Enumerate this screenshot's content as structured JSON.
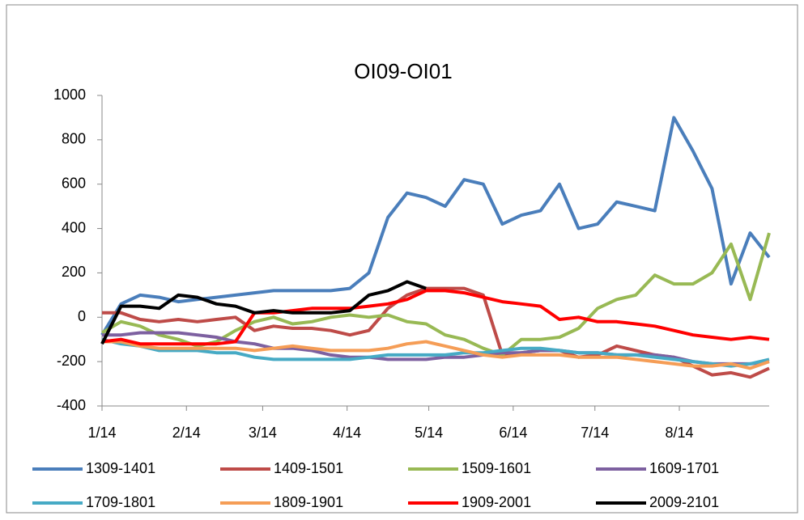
{
  "chart_data": {
    "type": "line",
    "title": "OI09-OI01",
    "x": [
      0,
      7,
      14,
      21,
      28,
      35,
      42,
      49,
      56,
      63,
      70,
      77,
      84,
      91,
      98,
      105,
      112,
      119,
      126,
      133,
      140,
      147,
      154,
      161,
      168,
      175,
      182,
      189,
      196,
      203,
      210,
      217,
      224,
      231,
      238,
      245
    ],
    "xlim": [
      0,
      245
    ],
    "xticks": [
      {
        "value": 0,
        "label": "1/14"
      },
      {
        "value": 31,
        "label": "2/14"
      },
      {
        "value": 59,
        "label": "3/14"
      },
      {
        "value": 90,
        "label": "4/14"
      },
      {
        "value": 120,
        "label": "5/14"
      },
      {
        "value": 151,
        "label": "6/14"
      },
      {
        "value": 181,
        "label": "7/14"
      },
      {
        "value": 212,
        "label": "8/14"
      }
    ],
    "ylim": [
      -400,
      1000
    ],
    "yticks": [
      -400,
      -200,
      0,
      200,
      400,
      600,
      800,
      1000
    ],
    "grid": false,
    "legend": "bottom",
    "series": [
      {
        "name": "1309-1401",
        "color": "#4a7ebb",
        "values": [
          -80,
          60,
          100,
          90,
          70,
          80,
          90,
          100,
          110,
          120,
          120,
          120,
          120,
          130,
          200,
          450,
          560,
          540,
          500,
          620,
          600,
          420,
          460,
          480,
          600,
          400,
          420,
          520,
          500,
          480,
          900,
          750,
          580,
          150,
          380,
          270
        ]
      },
      {
        "name": "1409-1501",
        "color": "#be4b48",
        "values": [
          20,
          20,
          -10,
          -20,
          -10,
          -20,
          -10,
          0,
          -60,
          -40,
          -50,
          -50,
          -60,
          -80,
          -60,
          40,
          100,
          130,
          130,
          130,
          100,
          -170,
          -160,
          -150,
          -150,
          -180,
          -170,
          -130,
          -150,
          -170,
          -180,
          -220,
          -260,
          -250,
          -270,
          -230
        ]
      },
      {
        "name": "1509-1601",
        "color": "#98b954",
        "values": [
          -70,
          -20,
          -40,
          -80,
          -100,
          -130,
          -110,
          -60,
          -20,
          0,
          -30,
          -20,
          0,
          10,
          0,
          10,
          -20,
          -30,
          -80,
          -100,
          -140,
          -170,
          -100,
          -100,
          -90,
          -50,
          40,
          80,
          100,
          190,
          150,
          150,
          200,
          330,
          80,
          380
        ]
      },
      {
        "name": "1609-1701",
        "color": "#7d60a0",
        "values": [
          -80,
          -80,
          -70,
          -70,
          -70,
          -80,
          -90,
          -110,
          -120,
          -140,
          -140,
          -150,
          -170,
          -180,
          -180,
          -190,
          -190,
          -190,
          -180,
          -180,
          -170,
          -160,
          -160,
          -150,
          -150,
          -160,
          -160,
          -170,
          -170,
          -170,
          -180,
          -200,
          -210,
          -210,
          -210,
          -200
        ]
      },
      {
        "name": "1709-1801",
        "color": "#46aac5",
        "values": [
          -100,
          -120,
          -130,
          -150,
          -150,
          -150,
          -160,
          -160,
          -180,
          -190,
          -190,
          -190,
          -190,
          -190,
          -180,
          -170,
          -170,
          -170,
          -170,
          -160,
          -160,
          -150,
          -140,
          -140,
          -150,
          -160,
          -160,
          -170,
          -170,
          -180,
          -190,
          -200,
          -210,
          -220,
          -210,
          -190
        ]
      },
      {
        "name": "1809-1901",
        "color": "#f59d56",
        "values": [
          -110,
          -110,
          -130,
          -140,
          -140,
          -140,
          -140,
          -140,
          -150,
          -140,
          -130,
          -140,
          -150,
          -150,
          -150,
          -140,
          -120,
          -110,
          -130,
          -150,
          -170,
          -180,
          -170,
          -170,
          -170,
          -180,
          -180,
          -180,
          -190,
          -200,
          -210,
          -220,
          -220,
          -210,
          -230,
          -200
        ]
      },
      {
        "name": "1909-2001",
        "color": "#ff0000",
        "values": [
          -110,
          -100,
          -120,
          -120,
          -120,
          -120,
          -120,
          -110,
          20,
          20,
          30,
          40,
          40,
          40,
          50,
          60,
          80,
          120,
          120,
          110,
          90,
          70,
          60,
          50,
          -10,
          0,
          -20,
          -20,
          -30,
          -40,
          -60,
          -80,
          -90,
          -100,
          -90,
          -100
        ]
      },
      {
        "name": "2009-2101",
        "color": "#000000",
        "values": [
          -120,
          50,
          50,
          40,
          100,
          90,
          60,
          50,
          20,
          30,
          20,
          20,
          20,
          30,
          100,
          120,
          160,
          130,
          null,
          null,
          null,
          null,
          null,
          null,
          null,
          null,
          null,
          null,
          null,
          null,
          null,
          null,
          null,
          null,
          null,
          null
        ]
      }
    ]
  }
}
